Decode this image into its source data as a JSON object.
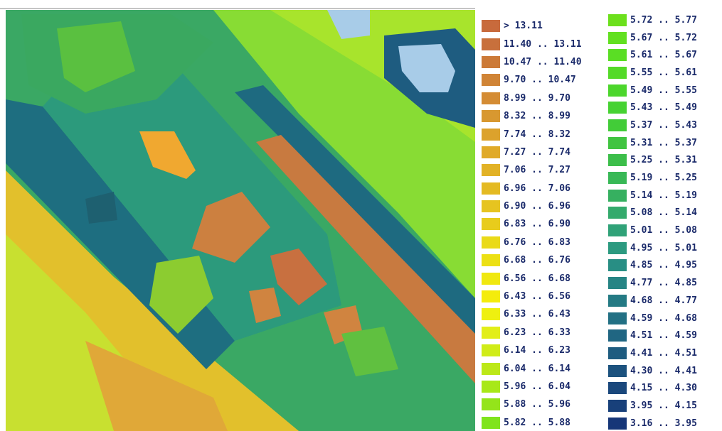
{
  "legend": {
    "columns": [
      [
        {
          "label": "> 13.11",
          "color": "#c86a3c"
        },
        {
          "label": "11.40 .. 13.11",
          "color": "#c8703c"
        },
        {
          "label": "10.47 .. 11.40",
          "color": "#cc7a38"
        },
        {
          "label": "9.70 .. 10.47",
          "color": "#d08436"
        },
        {
          "label": "8.99 .. 9.70",
          "color": "#d48c34"
        },
        {
          "label": "8.32 .. 8.99",
          "color": "#d89830"
        },
        {
          "label": "7.74 .. 8.32",
          "color": "#dca22c"
        },
        {
          "label": "7.27 .. 7.74",
          "color": "#e0aa28"
        },
        {
          "label": "7.06 .. 7.27",
          "color": "#e2b226"
        },
        {
          "label": "6.96 .. 7.06",
          "color": "#e4ba22"
        },
        {
          "label": "6.90 .. 6.96",
          "color": "#e6c420"
        },
        {
          "label": "6.83 .. 6.90",
          "color": "#e8cc1c"
        },
        {
          "label": "6.76 .. 6.83",
          "color": "#eada18"
        },
        {
          "label": "6.68 .. 6.76",
          "color": "#ece014"
        },
        {
          "label": "6.56 .. 6.68",
          "color": "#f0e810"
        },
        {
          "label": "6.43 .. 6.56",
          "color": "#f4ec0c"
        },
        {
          "label": "6.33 .. 6.43",
          "color": "#eef010"
        },
        {
          "label": "6.23 .. 6.33",
          "color": "#e2ee18"
        },
        {
          "label": "6.14 .. 6.23",
          "color": "#d0ec18"
        },
        {
          "label": "6.04 .. 6.14",
          "color": "#bce818"
        },
        {
          "label": "5.96 .. 6.04",
          "color": "#a8e818"
        },
        {
          "label": "5.88 .. 5.96",
          "color": "#94e41a"
        },
        {
          "label": "5.82 .. 5.88",
          "color": "#80e41c"
        }
      ],
      [
        {
          "label": "5.72 .. 5.77",
          "color": "#6ce01c"
        },
        {
          "label": "5.67 .. 5.72",
          "color": "#62e020"
        },
        {
          "label": "5.61 .. 5.67",
          "color": "#5ade24"
        },
        {
          "label": "5.55 .. 5.61",
          "color": "#54da28"
        },
        {
          "label": "5.49 .. 5.55",
          "color": "#4cd62c"
        },
        {
          "label": "5.43 .. 5.49",
          "color": "#46d232"
        },
        {
          "label": "5.37 .. 5.43",
          "color": "#42cc38"
        },
        {
          "label": "5.31 .. 5.37",
          "color": "#40c440"
        },
        {
          "label": "5.25 .. 5.31",
          "color": "#3cbe4a"
        },
        {
          "label": "5.19 .. 5.25",
          "color": "#38b856"
        },
        {
          "label": "5.14 .. 5.19",
          "color": "#36b060"
        },
        {
          "label": "5.08 .. 5.14",
          "color": "#34aa6c"
        },
        {
          "label": "5.01 .. 5.08",
          "color": "#30a278"
        },
        {
          "label": "4.95 .. 5.01",
          "color": "#2c9a80"
        },
        {
          "label": "4.85 .. 4.95",
          "color": "#288e84"
        },
        {
          "label": "4.77 .. 4.85",
          "color": "#268484"
        },
        {
          "label": "4.68 .. 4.77",
          "color": "#247a84"
        },
        {
          "label": "4.59 .. 4.68",
          "color": "#227084"
        },
        {
          "label": "4.51 .. 4.59",
          "color": "#206682"
        },
        {
          "label": "4.41 .. 4.51",
          "color": "#1e5c80"
        },
        {
          "label": "4.30 .. 4.41",
          "color": "#1c527e"
        },
        {
          "label": "4.15 .. 4.30",
          "color": "#1a487c"
        },
        {
          "label": "3.95 .. 4.15",
          "color": "#18407a"
        },
        {
          "label": "3.16 .. 3.95",
          "color": "#163678"
        }
      ]
    ]
  }
}
